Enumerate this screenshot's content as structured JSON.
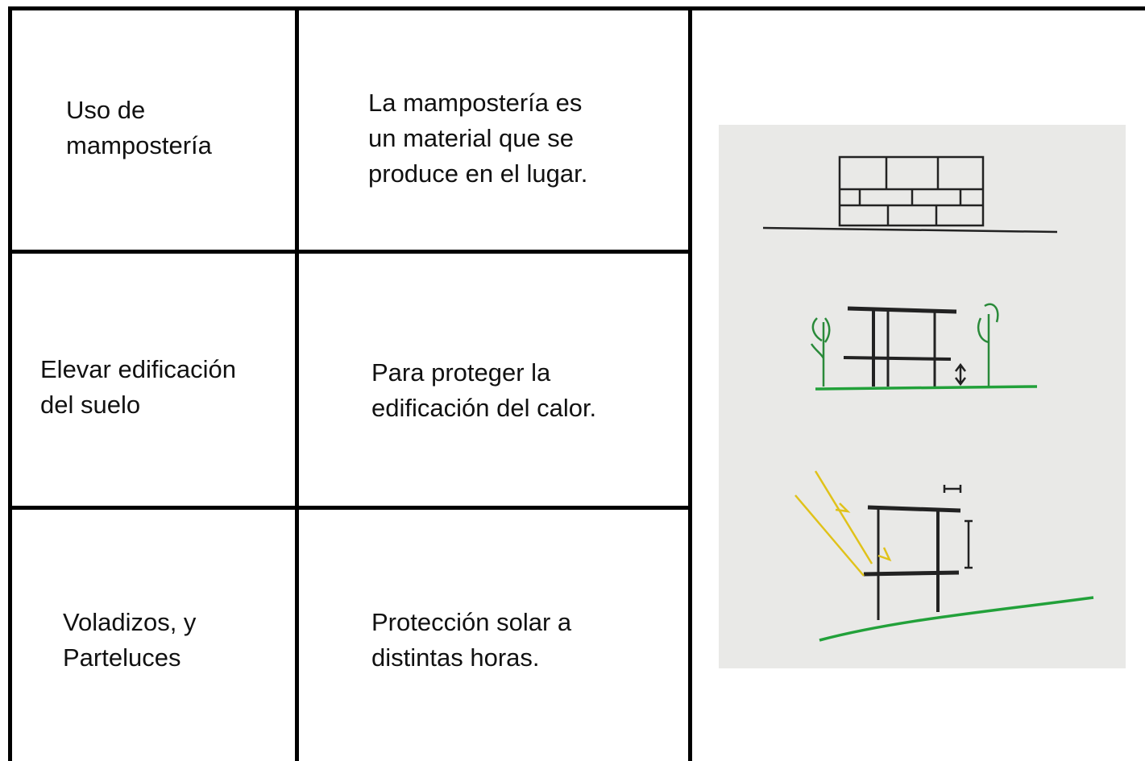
{
  "table": {
    "rows": [
      [
        [
          "Uso de",
          "mampostería"
        ],
        [
          "La mampostería es",
          "un material que se",
          "produce en el lugar."
        ]
      ],
      [
        [
          "Elevar edificación",
          "del suelo"
        ],
        [
          "Para proteger la",
          "edificación del calor."
        ]
      ],
      [
        [
          "Voladizos, y",
          "Parteluces"
        ],
        [
          "Protección solar a",
          "distintas horas."
        ]
      ]
    ]
  }
}
